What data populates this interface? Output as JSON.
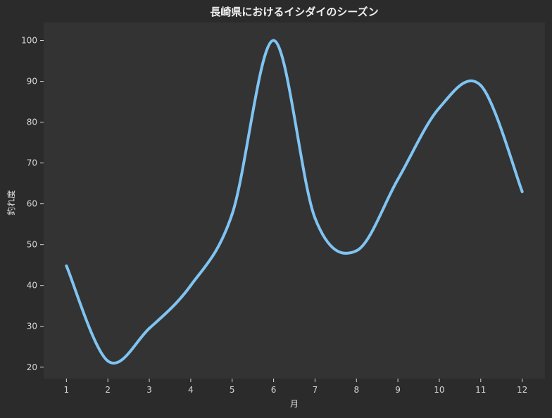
{
  "chart_data": {
    "type": "line",
    "title": "長崎県におけるイシダイのシーズン",
    "xlabel": "月",
    "ylabel": "釣れ度",
    "x": [
      1,
      2,
      3,
      4,
      5,
      6,
      7,
      8,
      9,
      10,
      11,
      12
    ],
    "x_ticks": [
      "1",
      "2",
      "3",
      "4",
      "5",
      "6",
      "7",
      "8",
      "9",
      "10",
      "11",
      "12"
    ],
    "y_ticks": [
      "20",
      "30",
      "40",
      "50",
      "60",
      "70",
      "80",
      "90",
      "100"
    ],
    "xlim": [
      0.45,
      12.55
    ],
    "ylim": [
      17.2,
      104.4
    ],
    "grid": false,
    "series": [
      {
        "color": "#7fc4f2",
        "smooth": true,
        "values": [
          44.8,
          21.5,
          29.5,
          40.0,
          57.5,
          100.0,
          56.5,
          48.5,
          66.0,
          83.5,
          89.0,
          63.0
        ]
      }
    ]
  },
  "colors": {
    "page_background": "#2b2b2b",
    "plot_background": "#333333",
    "text": "#e8e8e8",
    "tick_text": "#d6d6d6",
    "line": "#7fc4f2"
  }
}
